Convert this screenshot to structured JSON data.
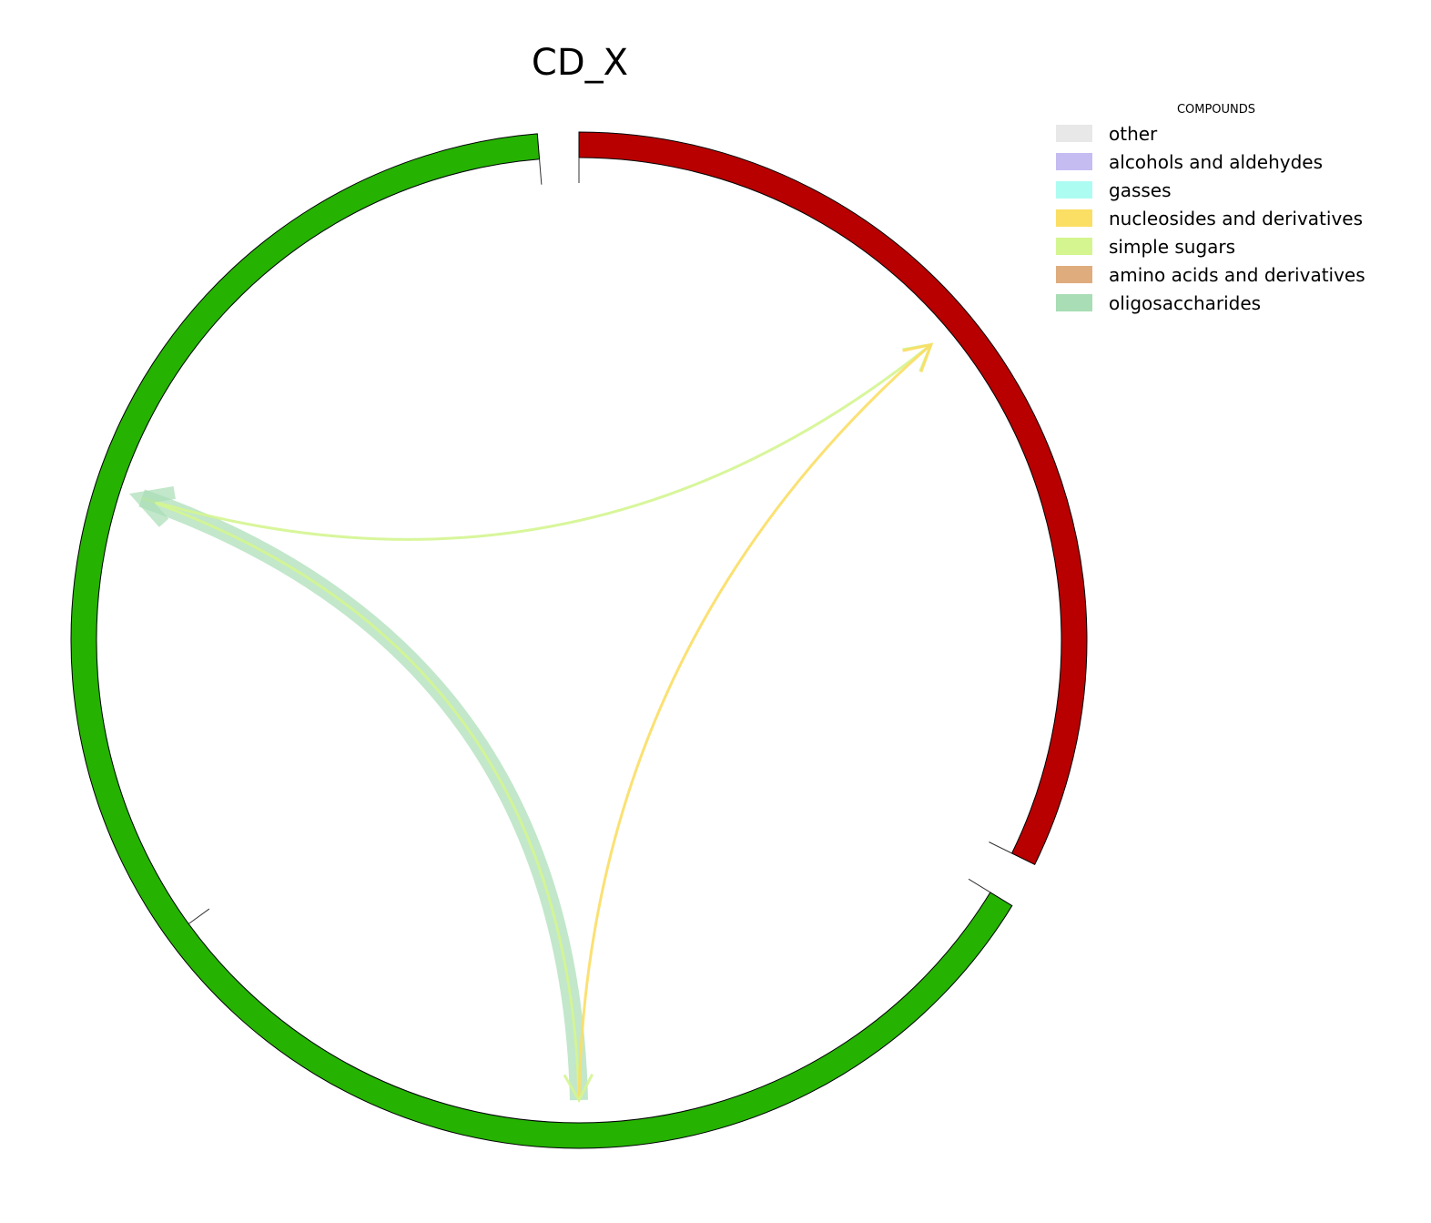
{
  "title": "CD_X",
  "legend": {
    "title": "COMPOUNDS",
    "items": [
      {
        "label": "other",
        "color": "#e8e8e8"
      },
      {
        "label": "alcohols and aldehydes",
        "color": "#c5bcf2"
      },
      {
        "label": "gasses",
        "color": "#adfcf1"
      },
      {
        "label": "nucleosides and derivatives",
        "color": "#fbde64"
      },
      {
        "label": "simple sugars",
        "color": "#d4f590"
      },
      {
        "label": "amino acids and derivatives",
        "color": "#dfac7d"
      },
      {
        "label": "oligosaccharides",
        "color": "#a8ddb5"
      }
    ]
  },
  "chord_data": {
    "type": "chord",
    "node_colors": {
      "green": "#25b200",
      "red": "#b80000"
    },
    "segments": [
      {
        "color": "#b80000",
        "start_deg": 0,
        "end_deg": 116.2
      },
      {
        "color": "#25b200",
        "start_deg": 121.5,
        "end_deg": 355.3
      }
    ],
    "links": [
      {
        "category": "oligosaccharides",
        "color": "#a8ddb5",
        "from_deg": 180,
        "to_deg": 288,
        "weight": 20
      },
      {
        "category": "simple sugars",
        "color": "#d4f590",
        "from_deg": 288,
        "to_deg": 50,
        "weight": 3
      },
      {
        "category": "simple sugars",
        "color": "#d4f590",
        "from_deg": 288,
        "to_deg": 180,
        "weight": 3
      },
      {
        "category": "nucleosides and derivatives",
        "color": "#fbde64",
        "from_deg": 180,
        "to_deg": 50,
        "weight": 3
      }
    ]
  }
}
